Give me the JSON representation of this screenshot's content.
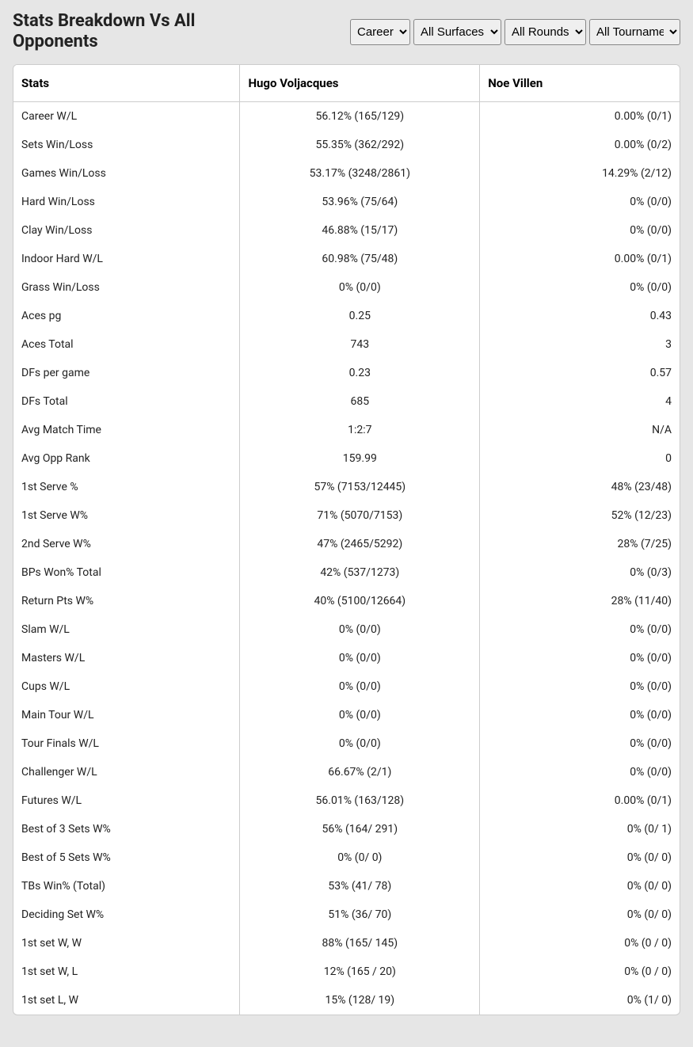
{
  "title": "Stats Breakdown Vs All Opponents",
  "filters": {
    "timeframe": {
      "selected": "Career",
      "options": [
        "Career"
      ]
    },
    "surface": {
      "selected": "All Surfaces",
      "options": [
        "All Surfaces"
      ]
    },
    "round": {
      "selected": "All Rounds",
      "options": [
        "All Rounds"
      ]
    },
    "tour": {
      "selected": "All Tournaments",
      "options": [
        "All Tournaments"
      ]
    }
  },
  "table": {
    "columns": [
      "Stats",
      "Hugo Voljacques",
      "Noe Villen"
    ],
    "column_align": [
      "left",
      "center",
      "right"
    ],
    "rows": [
      [
        "Career W/L",
        "56.12% (165/129)",
        "0.00% (0/1)"
      ],
      [
        "Sets Win/Loss",
        "55.35% (362/292)",
        "0.00% (0/2)"
      ],
      [
        "Games Win/Loss",
        "53.17% (3248/2861)",
        "14.29% (2/12)"
      ],
      [
        "Hard Win/Loss",
        "53.96% (75/64)",
        "0% (0/0)"
      ],
      [
        "Clay Win/Loss",
        "46.88% (15/17)",
        "0% (0/0)"
      ],
      [
        "Indoor Hard W/L",
        "60.98% (75/48)",
        "0.00% (0/1)"
      ],
      [
        "Grass Win/Loss",
        "0% (0/0)",
        "0% (0/0)"
      ],
      [
        "Aces pg",
        "0.25",
        "0.43"
      ],
      [
        "Aces Total",
        "743",
        "3"
      ],
      [
        "DFs per game",
        "0.23",
        "0.57"
      ],
      [
        "DFs Total",
        "685",
        "4"
      ],
      [
        "Avg Match Time",
        "1:2:7",
        "N/A"
      ],
      [
        "Avg Opp Rank",
        "159.99",
        "0"
      ],
      [
        "1st Serve %",
        "57% (7153/12445)",
        "48% (23/48)"
      ],
      [
        "1st Serve W%",
        "71% (5070/7153)",
        "52% (12/23)"
      ],
      [
        "2nd Serve W%",
        "47% (2465/5292)",
        "28% (7/25)"
      ],
      [
        "BPs Won% Total",
        "42% (537/1273)",
        "0% (0/3)"
      ],
      [
        "Return Pts W%",
        "40% (5100/12664)",
        "28% (11/40)"
      ],
      [
        "Slam W/L",
        "0% (0/0)",
        "0% (0/0)"
      ],
      [
        "Masters W/L",
        "0% (0/0)",
        "0% (0/0)"
      ],
      [
        "Cups W/L",
        "0% (0/0)",
        "0% (0/0)"
      ],
      [
        "Main Tour W/L",
        "0% (0/0)",
        "0% (0/0)"
      ],
      [
        "Tour Finals W/L",
        "0% (0/0)",
        "0% (0/0)"
      ],
      [
        "Challenger W/L",
        "66.67% (2/1)",
        "0% (0/0)"
      ],
      [
        "Futures W/L",
        "56.01% (163/128)",
        "0.00% (0/1)"
      ],
      [
        "Best of 3 Sets W%",
        "56% (164/ 291)",
        "0% (0/ 1)"
      ],
      [
        "Best of 5 Sets W%",
        "0% (0/ 0)",
        "0% (0/ 0)"
      ],
      [
        "TBs Win% (Total)",
        "53% (41/ 78)",
        "0% (0/ 0)"
      ],
      [
        "Deciding Set W%",
        "51% (36/ 70)",
        "0% (0/ 0)"
      ],
      [
        "1st set W, W",
        "88% (165/ 145)",
        "0% (0 / 0)"
      ],
      [
        "1st set W, L",
        "12% (165 / 20)",
        "0% (0 / 0)"
      ],
      [
        "1st set L, W",
        "15% (128/ 19)",
        "0% (1/ 0)"
      ]
    ]
  },
  "colors": {
    "page_bg": "#e6e6e6",
    "card_bg": "#ffffff",
    "border": "#cccccc",
    "text": "#222222"
  }
}
